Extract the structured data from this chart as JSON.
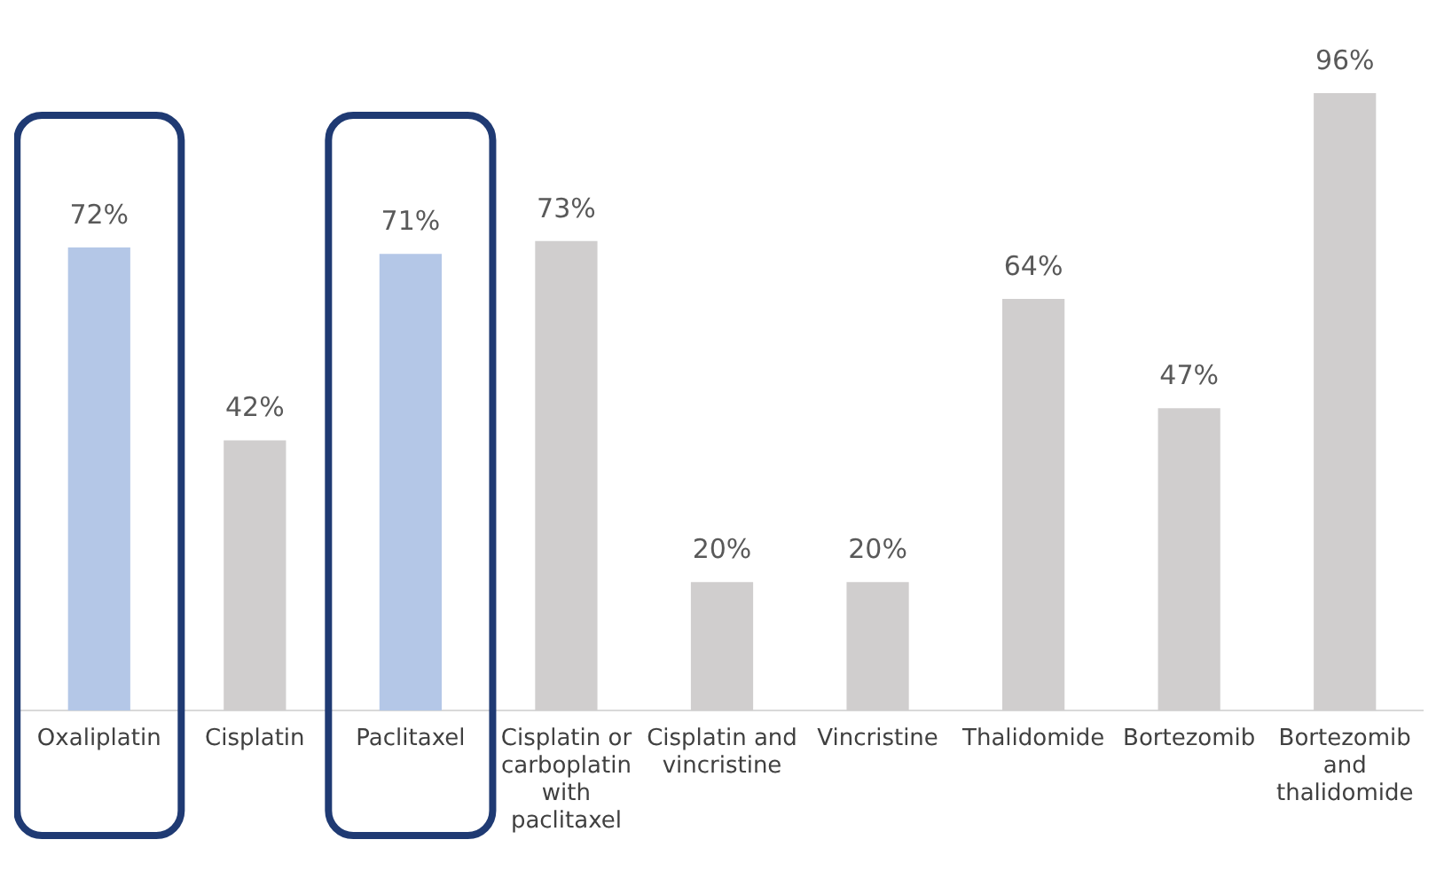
{
  "chart_data": {
    "type": "bar",
    "categories": [
      "Oxaliplatin",
      "Cisplatin",
      "Paclitaxel",
      "Cisplatin or carboplatin with paclitaxel",
      "Cisplatin and vincristine",
      "Vincristine",
      "Thalidomide",
      "Bortezomib",
      "Bortezomib and thalidomide"
    ],
    "values": [
      72,
      42,
      71,
      73,
      20,
      20,
      64,
      47,
      96
    ],
    "value_labels": [
      "72%",
      "42%",
      "71%",
      "73%",
      "20%",
      "20%",
      "64%",
      "47%",
      "96%"
    ],
    "colors": [
      "#b4c7e7",
      "#d0cece",
      "#b4c7e7",
      "#d0cece",
      "#d0cece",
      "#d0cece",
      "#d0cece",
      "#d0cece",
      "#d0cece"
    ],
    "tick_labels": "x",
    "grid": false,
    "legend": false
  }
}
